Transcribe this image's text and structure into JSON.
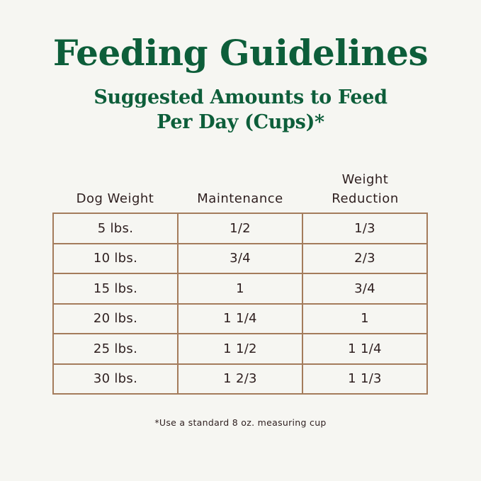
{
  "title": "Feeding Guidelines",
  "subtitle_line1": "Suggested Amounts to Feed",
  "subtitle_line2": "Per Day (Cups)*",
  "table": {
    "headers": [
      "Dog Weight",
      "Maintenance",
      "Weight Reduction"
    ],
    "header_reduction_line1": "Weight",
    "header_reduction_line2": "Reduction",
    "rows": [
      [
        "5 lbs.",
        "1/2",
        "1/3"
      ],
      [
        "10 lbs.",
        "3/4",
        "2/3"
      ],
      [
        "15 lbs.",
        "1",
        "3/4"
      ],
      [
        "20 lbs.",
        "1 1/4",
        "1"
      ],
      [
        "25 lbs.",
        "1 1/2",
        "1 1/4"
      ],
      [
        "30 lbs.",
        "1 2/3",
        "1 1/3"
      ]
    ]
  },
  "footnote": "*Use a standard 8 oz. measuring cup",
  "colors": {
    "heading": "#0d5e3a",
    "text": "#2e1f1f",
    "border": "#a47c5c",
    "background": "#f6f6f2"
  }
}
